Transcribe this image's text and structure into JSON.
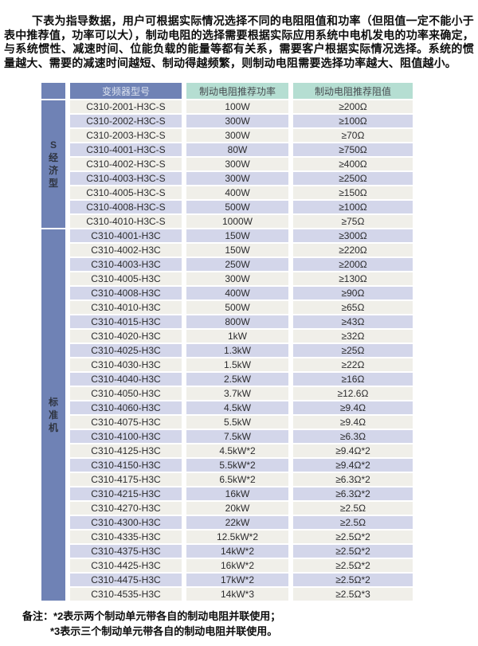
{
  "intro": {
    "text": "下表为指导数据，用户可根据实际情况选择不同的电阻阻值和功率（但阻值一定不能小于表中推荐值，功率可以大），制动电阻的选择需要根据实际应用系统中电机发电的功率来确定，与系统惯性、减速时间、位能负载的能量等都有关系，需要客户根据实际情况选择。系统的惯量越大、需要的减速时间越短、制动得越频繁，则制动电阻需要选择功率越大、阻值越小。"
  },
  "table": {
    "headers": {
      "model": "变频器型号",
      "power": "制动电阻推荐功率",
      "resistance": "制动电阻推荐阻值"
    },
    "groups": [
      {
        "label": "S经济型",
        "rows": [
          [
            "C310-2001-H3C-S",
            "100W",
            "≥200Ω"
          ],
          [
            "C310-2002-H3C-S",
            "300W",
            "≥100Ω"
          ],
          [
            "C310-2003-H3C-S",
            "300W",
            "≥70Ω"
          ],
          [
            "C310-4001-H3C-S",
            "80W",
            "≥750Ω"
          ],
          [
            "C310-4002-H3C-S",
            "300W",
            "≥400Ω"
          ],
          [
            "C310-4003-H3C-S",
            "300W",
            "≥250Ω"
          ],
          [
            "C310-4005-H3C-S",
            "400W",
            "≥150Ω"
          ],
          [
            "C310-4008-H3C-S",
            "500W",
            "≥100Ω"
          ],
          [
            "C310-4010-H3C-S",
            "1000W",
            "≥75Ω"
          ]
        ]
      },
      {
        "label": "标准机",
        "rows": [
          [
            "C310-4001-H3C",
            "150W",
            "≥300Ω"
          ],
          [
            "C310-4002-H3C",
            "150W",
            "≥220Ω"
          ],
          [
            "C310-4003-H3C",
            "250W",
            "≥200Ω"
          ],
          [
            "C310-4005-H3C",
            "300W",
            "≥130Ω"
          ],
          [
            "C310-4008-H3C",
            "400W",
            "≥90Ω"
          ],
          [
            "C310-4010-H3C",
            "500W",
            "≥65Ω"
          ],
          [
            "C310-4015-H3C",
            "800W",
            "≥43Ω"
          ],
          [
            "C310-4020-H3C",
            "1kW",
            "≥32Ω"
          ],
          [
            "C310-4025-H3C",
            "1.3kW",
            "≥25Ω"
          ],
          [
            "C310-4030-H3C",
            "1.5kW",
            "≥22Ω"
          ],
          [
            "C310-4040-H3C",
            "2.5kW",
            "≥16Ω"
          ],
          [
            "C310-4050-H3C",
            "3.7kW",
            "≥12.6Ω"
          ],
          [
            "C310-4060-H3C",
            "4.5kW",
            "≥9.4Ω"
          ],
          [
            "C310-4075-H3C",
            "5.5kW",
            "≥9.4Ω"
          ],
          [
            "C310-4100-H3C",
            "7.5kW",
            "≥6.3Ω"
          ],
          [
            "C310-4125-H3C",
            "4.5kW*2",
            "≥9.4Ω*2"
          ],
          [
            "C310-4150-H3C",
            "5.5kW*2",
            "≥9.4Ω*2"
          ],
          [
            "C310-4175-H3C",
            "6.5kW*2",
            "≥6.3Ω*2"
          ],
          [
            "C310-4215-H3C",
            "16kW",
            "≥6.3Ω*2"
          ],
          [
            "C310-4270-H3C",
            "20kW",
            "≥2.5Ω"
          ],
          [
            "C310-4300-H3C",
            "22kW",
            "≥2.5Ω"
          ],
          [
            "C310-4335-H3C",
            "12.5kW*2",
            "≥2.5Ω*2"
          ],
          [
            "C310-4375-H3C",
            "14kW*2",
            "≥2.5Ω*2"
          ],
          [
            "C310-4425-H3C",
            "16kW*2",
            "≥2.5Ω*2"
          ],
          [
            "C310-4475-H3C",
            "17kW*2",
            "≥2.5Ω*2"
          ],
          [
            "C310-4535-H3C",
            "14kW*3",
            "≥2.5Ω*3"
          ]
        ]
      }
    ]
  },
  "notes": {
    "prefix": "备注：",
    "line1": "*2表示两个制动单元带各自的制动电阻并联使用；",
    "line2": "*3表示三个制动单元带各自的制动电阻并联使用。"
  },
  "colors": {
    "header_blue": "#6f82b5",
    "header_blue_text": "#dde3ef",
    "header_green": "#b5ded2",
    "header_green_text": "#474c50",
    "row_odd_ivory": "#f0efe9",
    "row_even_lavender": "#d3d6ea"
  }
}
